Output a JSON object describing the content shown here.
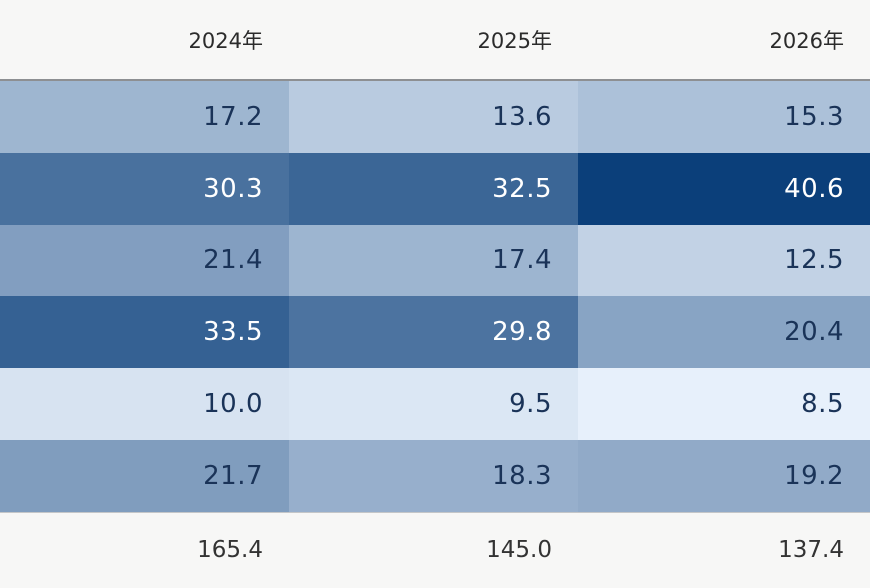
{
  "chart_data": {
    "type": "heatmap",
    "columns": [
      "2024年",
      "2025年",
      "2026年"
    ],
    "rows": [
      [
        "17.2",
        "13.6",
        "15.3"
      ],
      [
        "30.3",
        "32.5",
        "40.6"
      ],
      [
        "21.4",
        "17.4",
        "12.5"
      ],
      [
        "33.5",
        "29.8",
        "20.4"
      ],
      [
        "10.0",
        "9.5",
        "8.5"
      ],
      [
        "21.7",
        "18.3",
        "19.2"
      ]
    ],
    "totals": [
      "165.4",
      "145.0",
      "137.4"
    ],
    "color_scale": {
      "low": "#e7f0fb",
      "high": "#0b3f7a",
      "dark_text": "#1a3358",
      "light_text": "#ffffff"
    }
  }
}
